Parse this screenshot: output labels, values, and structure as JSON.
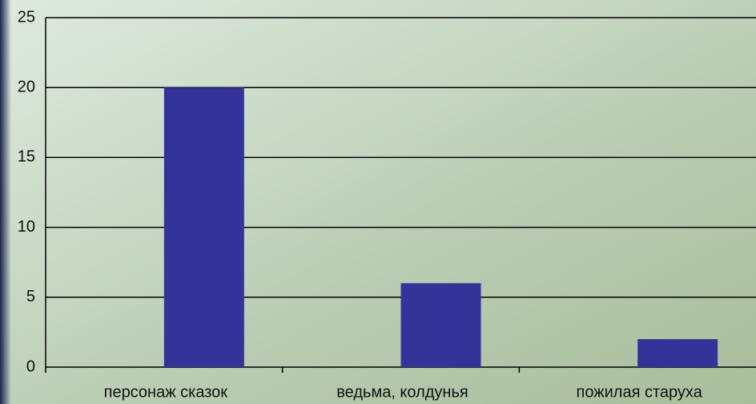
{
  "chart_data": {
    "type": "bar",
    "categories": [
      "персонаж сказок",
      "ведьма, колдунья",
      "пожилая старуха"
    ],
    "values": [
      20,
      6,
      2
    ],
    "color": "#333399",
    "ylim": [
      0,
      25
    ],
    "yticks": [
      0,
      5,
      10,
      15,
      20,
      25
    ],
    "grid": true
  }
}
